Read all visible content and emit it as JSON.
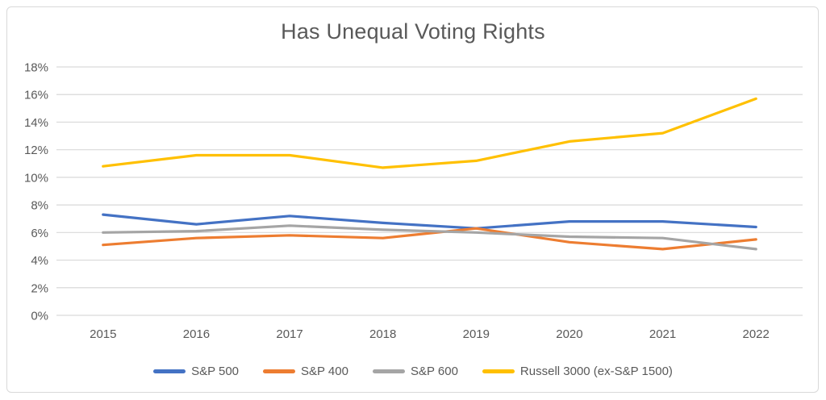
{
  "chart_data": {
    "type": "line",
    "title": "Has Unequal Voting Rights",
    "categories": [
      "2015",
      "2016",
      "2017",
      "2018",
      "2019",
      "2020",
      "2021",
      "2022"
    ],
    "series": [
      {
        "name": "S&P 500",
        "color": "#4472C4",
        "values": [
          7.3,
          6.6,
          7.2,
          6.7,
          6.3,
          6.8,
          6.8,
          6.4
        ]
      },
      {
        "name": "S&P 400",
        "color": "#ED7D31",
        "values": [
          5.1,
          5.6,
          5.8,
          5.6,
          6.3,
          5.3,
          4.8,
          5.5
        ]
      },
      {
        "name": "S&P 600",
        "color": "#A5A5A5",
        "values": [
          6.0,
          6.1,
          6.5,
          6.2,
          6.0,
          5.7,
          5.6,
          4.8
        ]
      },
      {
        "name": "Russell 3000 (ex-S&P 1500)",
        "color": "#FFC000",
        "values": [
          10.8,
          11.6,
          11.6,
          10.7,
          11.2,
          12.6,
          13.2,
          15.7
        ]
      }
    ],
    "xlabel": "",
    "ylabel": "",
    "ylim": [
      0,
      18
    ],
    "ytick_step": 2,
    "ytick_suffix": "%",
    "ytick_labels": [
      "0%",
      "2%",
      "4%",
      "6%",
      "8%",
      "10%",
      "12%",
      "14%",
      "16%",
      "18%"
    ],
    "grid": true,
    "legend_position": "bottom"
  },
  "colors": {
    "background": "#FFFFFF",
    "border": "#D9D9D9",
    "gridline": "#D9D9D9",
    "title_text": "#595959",
    "axis_text": "#595959",
    "legend_text": "#595959"
  }
}
